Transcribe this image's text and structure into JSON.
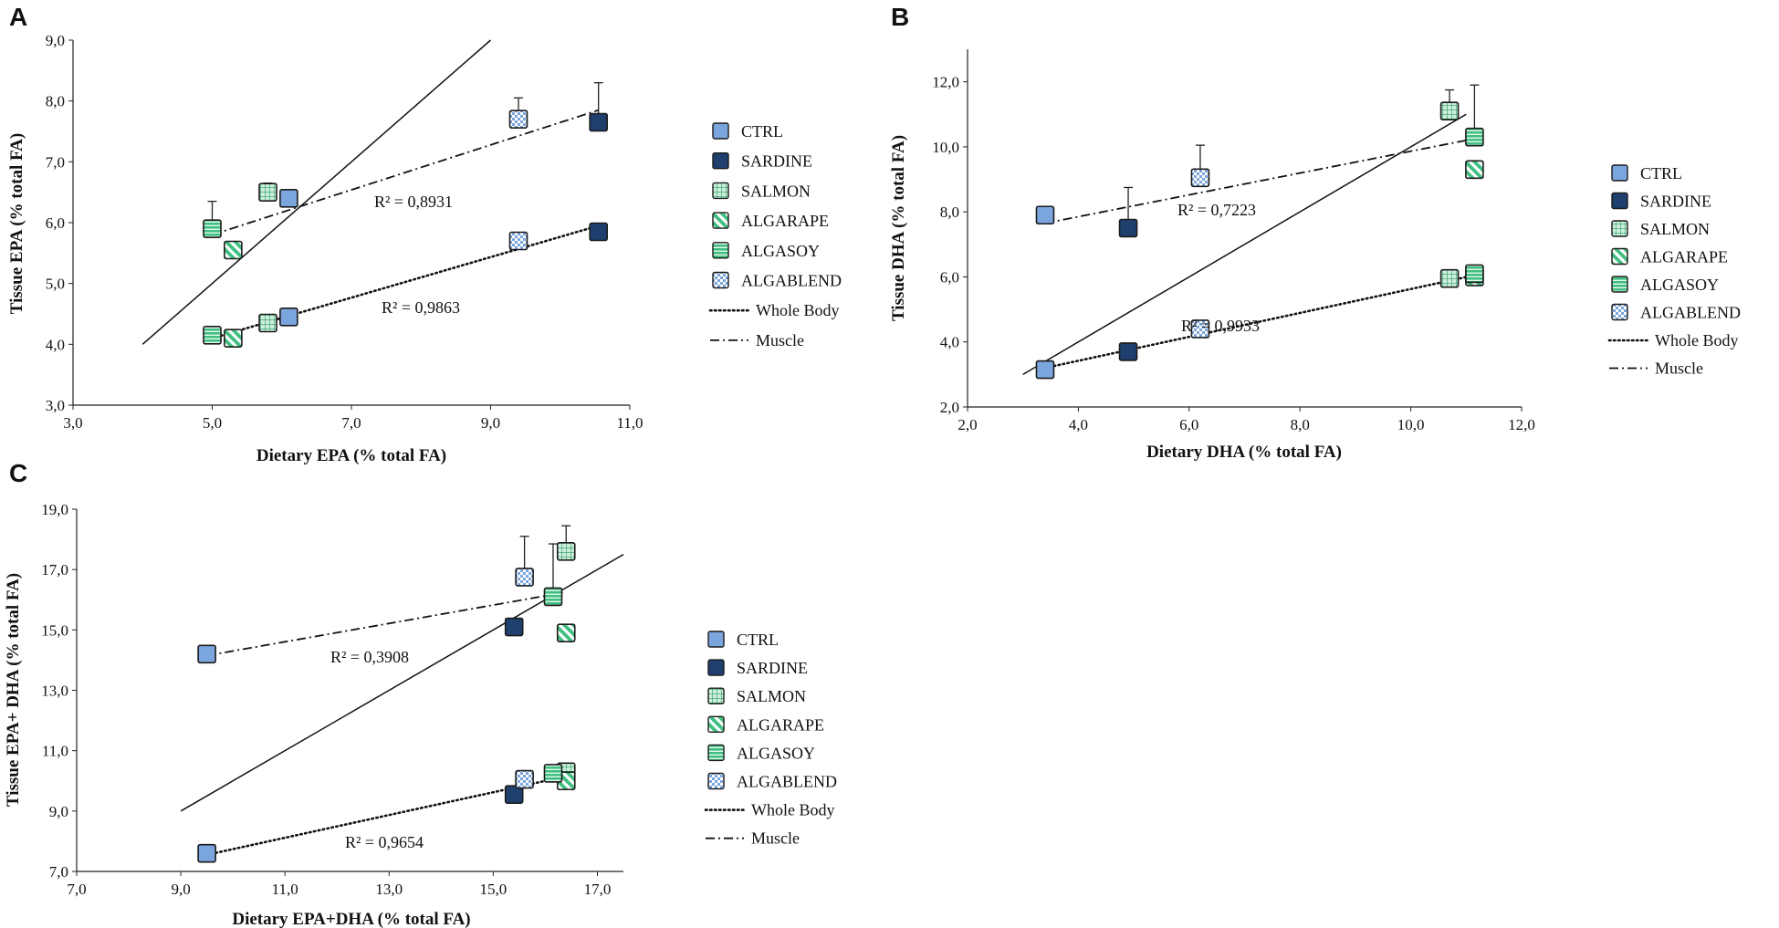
{
  "colors": {
    "CTRL": "#7aa5dd",
    "SARDINE": "#1f3f6e",
    "SALMON": "#cdeedb",
    "ALGARAPE": "#3fbf80",
    "ALGASOY": "#3fbf80",
    "ALGABLEND": "#7aa5dd",
    "line": "#111111"
  },
  "legend": {
    "items": [
      {
        "label": "CTRL",
        "pattern": "solid-light"
      },
      {
        "label": "SARDINE",
        "pattern": "solid-dark"
      },
      {
        "label": "SALMON",
        "pattern": "grid"
      },
      {
        "label": "ALGARAPE",
        "pattern": "diagonal"
      },
      {
        "label": "ALGASOY",
        "pattern": "horizontal"
      },
      {
        "label": "ALGABLEND",
        "pattern": "checker"
      }
    ],
    "whole_body_label": "Whole Body",
    "muscle_label": "Muscle"
  },
  "chart_data": [
    {
      "panel": "A",
      "type": "scatter",
      "xlabel": "Dietary EPA (% total FA)",
      "ylabel": "Tissue EPA (% total FA)",
      "xlim": [
        3,
        11
      ],
      "ylim": [
        3,
        9
      ],
      "xticks": [
        "3,0",
        "5,0",
        "7,0",
        "9,0",
        "11,0"
      ],
      "yticks": [
        "3,0",
        "4,0",
        "5,0",
        "6,0",
        "7,0",
        "8,0",
        "9,0"
      ],
      "identity_line": [
        [
          4,
          4
        ],
        [
          9,
          9
        ]
      ],
      "whole_body": {
        "points": [
          {
            "diet": "CTRL",
            "x": 6.1,
            "y": 4.45
          },
          {
            "diet": "SARDINE",
            "x": 10.55,
            "y": 5.85
          },
          {
            "diet": "SALMON",
            "x": 5.8,
            "y": 4.35
          },
          {
            "diet": "ALGARAPE",
            "x": 5.3,
            "y": 4.1
          },
          {
            "diet": "ALGASOY",
            "x": 5.0,
            "y": 4.15
          },
          {
            "diet": "ALGABLEND",
            "x": 9.4,
            "y": 5.7
          }
        ],
        "trend": [
          [
            5.0,
            4.1
          ],
          [
            10.55,
            5.95
          ]
        ],
        "r2": "R² = 0,9863"
      },
      "muscle": {
        "points": [
          {
            "diet": "CTRL",
            "x": 6.1,
            "y": 6.4,
            "err": 0
          },
          {
            "diet": "SARDINE",
            "x": 10.55,
            "y": 7.65,
            "err": 0.65
          },
          {
            "diet": "SALMON",
            "x": 5.8,
            "y": 6.5,
            "err": 0.15
          },
          {
            "diet": "ALGARAPE",
            "x": 5.3,
            "y": 5.55,
            "err": 0
          },
          {
            "diet": "ALGASOY",
            "x": 5.0,
            "y": 5.9,
            "err": 0.45
          },
          {
            "diet": "ALGABLEND",
            "x": 9.4,
            "y": 7.7,
            "err": 0.35
          }
        ],
        "trend": [
          [
            5.0,
            5.8
          ],
          [
            10.55,
            7.85
          ]
        ],
        "r2": "R² = 0,8931"
      }
    },
    {
      "panel": "B",
      "type": "scatter",
      "xlabel": "Dietary DHA (% total FA)",
      "ylabel": "Tissue DHA (% total FA)",
      "xlim": [
        2,
        12
      ],
      "ylim": [
        2,
        13
      ],
      "xticks": [
        "2,0",
        "4,0",
        "6,0",
        "8,0",
        "10,0",
        "12,0"
      ],
      "yticks": [
        "2,0",
        "4,0",
        "6,0",
        "8,0",
        "10,0",
        "12,0"
      ],
      "identity_line": [
        [
          3,
          3
        ],
        [
          11,
          11
        ]
      ],
      "whole_body": {
        "points": [
          {
            "diet": "CTRL",
            "x": 3.4,
            "y": 3.15
          },
          {
            "diet": "SARDINE",
            "x": 4.9,
            "y": 3.7
          },
          {
            "diet": "SALMON",
            "x": 10.7,
            "y": 5.95
          },
          {
            "diet": "ALGARAPE",
            "x": 11.15,
            "y": 6.0
          },
          {
            "diet": "ALGASOY",
            "x": 11.15,
            "y": 6.1
          },
          {
            "diet": "ALGABLEND",
            "x": 6.2,
            "y": 4.4
          }
        ],
        "trend": [
          [
            3.4,
            3.2
          ],
          [
            11.15,
            6.05
          ]
        ],
        "r2": "R² = 0,9933"
      },
      "muscle": {
        "points": [
          {
            "diet": "CTRL",
            "x": 3.4,
            "y": 7.9,
            "err": 0
          },
          {
            "diet": "SARDINE",
            "x": 4.9,
            "y": 7.5,
            "err": 1.25
          },
          {
            "diet": "SALMON",
            "x": 10.7,
            "y": 11.1,
            "err": 0.65
          },
          {
            "diet": "ALGARAPE",
            "x": 11.15,
            "y": 9.3,
            "err": 0
          },
          {
            "diet": "ALGASOY",
            "x": 11.15,
            "y": 10.3,
            "err": 1.6
          },
          {
            "diet": "ALGABLEND",
            "x": 6.2,
            "y": 9.05,
            "err": 1.0
          }
        ],
        "trend": [
          [
            3.4,
            7.65
          ],
          [
            11.15,
            10.25
          ]
        ],
        "r2": "R² = 0,7223"
      }
    },
    {
      "panel": "C",
      "type": "scatter",
      "xlabel": "Dietary EPA+DHA (% total FA)",
      "ylabel": "Tissue EPA+ DHA (% total FA)",
      "xlim": [
        7,
        17.5
      ],
      "ylim": [
        7,
        19
      ],
      "xticks": [
        "7,0",
        "9,0",
        "11,0",
        "13,0",
        "15,0",
        "17,0"
      ],
      "yticks": [
        "7,0",
        "9,0",
        "11,0",
        "13,0",
        "15,0",
        "17,0",
        "19,0"
      ],
      "identity_line": [
        [
          9,
          9
        ],
        [
          17.5,
          17.5
        ]
      ],
      "whole_body": {
        "points": [
          {
            "diet": "CTRL",
            "x": 9.5,
            "y": 7.6
          },
          {
            "diet": "SARDINE",
            "x": 15.4,
            "y": 9.55
          },
          {
            "diet": "SALMON",
            "x": 16.4,
            "y": 10.3
          },
          {
            "diet": "ALGARAPE",
            "x": 16.4,
            "y": 10.0
          },
          {
            "diet": "ALGASOY",
            "x": 16.15,
            "y": 10.25
          },
          {
            "diet": "ALGABLEND",
            "x": 15.6,
            "y": 10.05
          }
        ],
        "trend": [
          [
            9.5,
            7.55
          ],
          [
            16.4,
            10.15
          ]
        ],
        "r2": "R² = 0,9654"
      },
      "muscle": {
        "points": [
          {
            "diet": "CTRL",
            "x": 9.5,
            "y": 14.2,
            "err": 0
          },
          {
            "diet": "SARDINE",
            "x": 15.4,
            "y": 15.1,
            "err": 0
          },
          {
            "diet": "SALMON",
            "x": 16.4,
            "y": 17.6,
            "err": 0.85
          },
          {
            "diet": "ALGARAPE",
            "x": 16.4,
            "y": 14.9,
            "err": 0
          },
          {
            "diet": "ALGASOY",
            "x": 16.15,
            "y": 16.1,
            "err": 1.75
          },
          {
            "diet": "ALGABLEND",
            "x": 15.6,
            "y": 16.75,
            "err": 1.35
          }
        ],
        "trend": [
          [
            9.5,
            14.15
          ],
          [
            16.4,
            16.25
          ]
        ],
        "r2": "R² = 0,3908"
      }
    }
  ]
}
